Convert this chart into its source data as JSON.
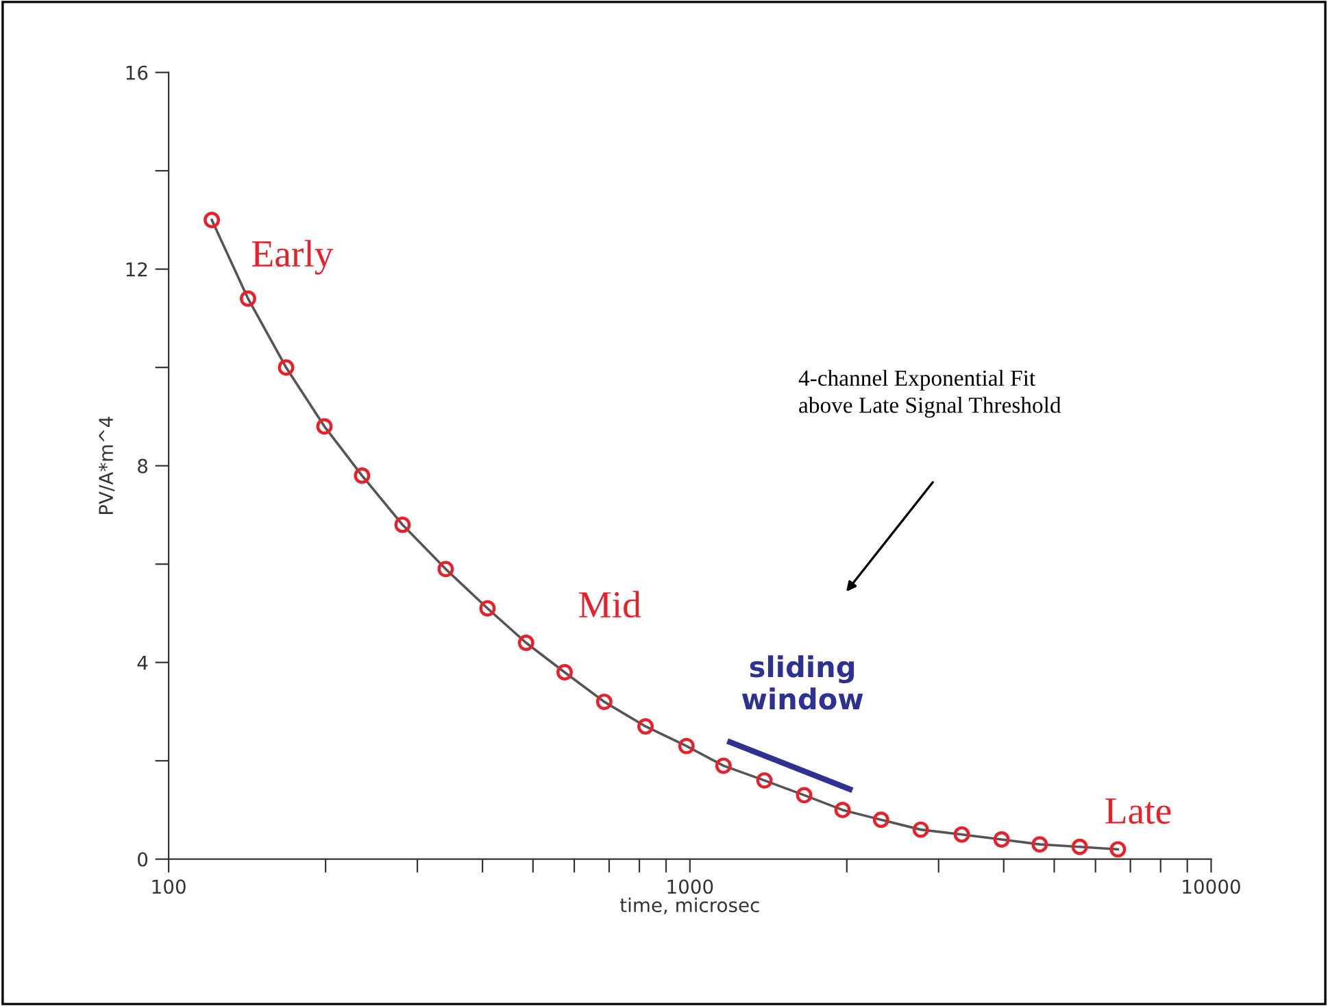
{
  "chart_data": {
    "type": "line",
    "xlabel": "time, microsec",
    "ylabel": "PV/A*m^4",
    "log": "x",
    "xlim": [
      100,
      10000
    ],
    "ylim": [
      0,
      16
    ],
    "xticks": [
      100,
      {
        "value": 200,
        "label": null
      },
      {
        "value": 300,
        "label": null
      },
      {
        "value": 400,
        "label": null
      },
      {
        "value": 500,
        "label": null
      },
      {
        "value": 600,
        "label": null
      },
      {
        "value": 700,
        "label": null
      },
      {
        "value": 800,
        "label": null
      },
      {
        "value": 900,
        "label": null
      },
      1000,
      {
        "value": 2000,
        "label": null
      },
      {
        "value": 3000,
        "label": null
      },
      {
        "value": 4000,
        "label": null
      },
      {
        "value": 5000,
        "label": null
      },
      {
        "value": 6000,
        "label": null
      },
      {
        "value": 7000,
        "label": null
      },
      {
        "value": 8000,
        "label": null
      },
      {
        "value": 9000,
        "label": null
      },
      10000
    ],
    "yticks": [
      0,
      {
        "value": 2,
        "label": null
      },
      4,
      {
        "value": 6,
        "label": null
      },
      8,
      {
        "value": 10,
        "label": null
      },
      12,
      {
        "value": 14,
        "label": null
      },
      16
    ],
    "grid": false,
    "legend": false,
    "series": [
      {
        "color": "#e8202a",
        "marker": "circle",
        "line_style": "solid",
        "x": [
          121,
          142,
          168,
          199,
          235,
          281,
          340,
          409,
          485,
          575,
          685,
          822,
          985,
          1160,
          1390,
          1657,
          1963,
          2327,
          2773,
          3324,
          3963,
          4690,
          5596,
          6624
        ],
        "values": [
          13.0,
          11.4,
          10.0,
          8.8,
          7.8,
          6.8,
          5.9,
          5.1,
          4.4,
          3.8,
          3.2,
          2.7,
          2.3,
          1.9,
          1.6,
          1.3,
          1.0,
          0.8,
          0.6,
          0.5,
          0.4,
          0.3,
          0.25,
          0.2
        ]
      },
      {
        "color": "#2e3192",
        "marker": "none",
        "line_style": "solid",
        "x": [
          1180,
          2050
        ],
        "values": [
          2.4,
          1.4
        ]
      }
    ],
    "annotations": [
      "Early",
      "Mid",
      "sliding window",
      "Late",
      "4-channel Exponential Fit\nabove Late Signal Threshold"
    ]
  }
}
